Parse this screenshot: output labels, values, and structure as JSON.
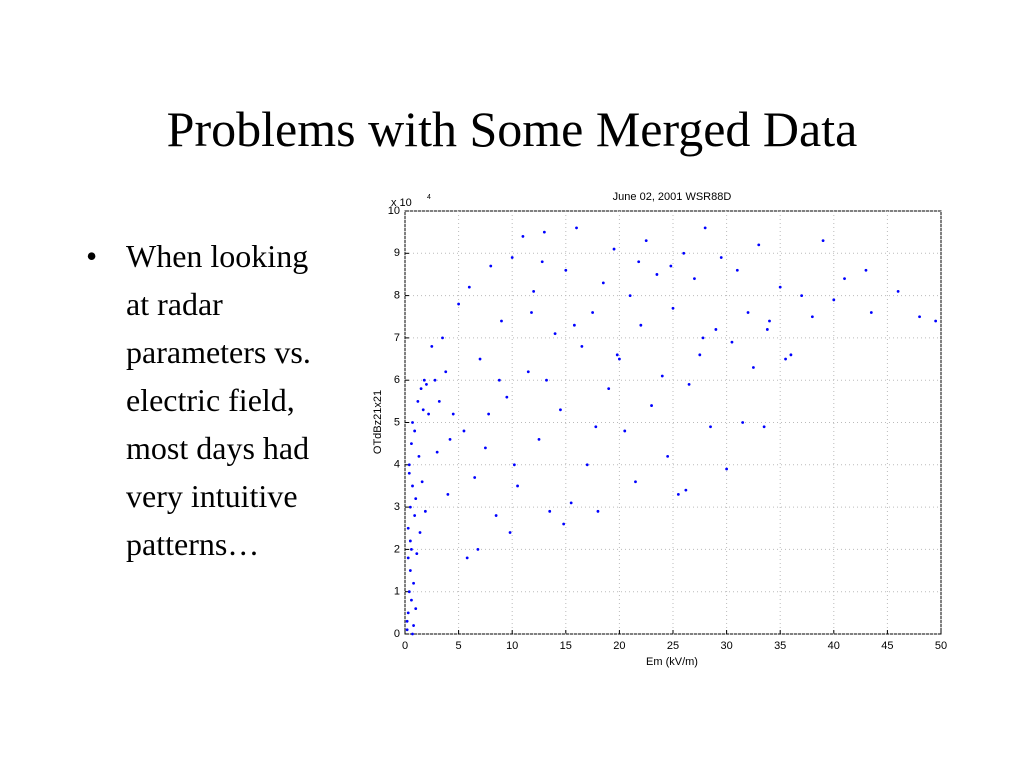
{
  "slide": {
    "title": "Problems with Some Merged Data",
    "bullet_lines": [
      "When looking",
      "at radar",
      "parameters vs.",
      "electric field,",
      "most days had",
      "very intuitive",
      "patterns…"
    ]
  },
  "chart_data": {
    "type": "scatter",
    "title": "June 02, 2001 WSR88D",
    "x_label": "Em (kV/m)",
    "y_label": "OTdBz21x21",
    "y_multiplier": {
      "base": "x 10",
      "exponent": "4"
    },
    "color": "#0000ff",
    "grid": true,
    "xlim": [
      0,
      50
    ],
    "xticks": [
      0,
      5,
      10,
      15,
      20,
      25,
      30,
      35,
      40,
      45,
      50
    ],
    "ylim": [
      0,
      10
    ],
    "yticks": [
      0,
      1,
      2,
      3,
      4,
      5,
      6,
      7,
      8,
      9,
      10
    ],
    "x": [
      0.2,
      0.3,
      0.4,
      0.5,
      0.6,
      0.3,
      0.5,
      0.7,
      0.4,
      0.2,
      0.6,
      0.8,
      0.3,
      0.5,
      0.9,
      1.0,
      0.4,
      0.6,
      0.7,
      1.2,
      1.5,
      1.8,
      2.0,
      2.2,
      1.3,
      1.6,
      0.8,
      1.1,
      1.4,
      1.9,
      2.5,
      3.0,
      3.5,
      4.0,
      4.5,
      5.0,
      5.5,
      6.0,
      6.5,
      7.0,
      7.5,
      8.0,
      8.5,
      9.0,
      9.5,
      10.0,
      10.5,
      11.0,
      11.5,
      12.0,
      12.5,
      13.0,
      13.5,
      14.0,
      14.5,
      15.0,
      15.5,
      16.0,
      16.5,
      17.0,
      17.5,
      18.0,
      18.5,
      19.0,
      19.5,
      20.0,
      20.5,
      21.0,
      21.5,
      22.0,
      22.5,
      23.0,
      23.5,
      24.0,
      24.5,
      25.0,
      25.5,
      26.0,
      26.5,
      27.0,
      27.5,
      28.0,
      28.5,
      29.0,
      29.5,
      30.0,
      30.5,
      31.0,
      31.5,
      32.0,
      32.5,
      33.0,
      33.5,
      34.0,
      35.0,
      36.0,
      37.0,
      38.0,
      39.0,
      40.0,
      41.0,
      43.0,
      43.5,
      46.0,
      48.0,
      49.5,
      2.8,
      3.2,
      3.8,
      4.2,
      7.8,
      8.8,
      11.8,
      12.8,
      15.8,
      19.8,
      24.8,
      27.8,
      33.8,
      35.5,
      10.2,
      13.2,
      17.8,
      21.8,
      26.2,
      6.8,
      9.8,
      14.8,
      5.8,
      1.0,
      0.7,
      0.9,
      1.7
    ],
    "values": [
      0.1,
      0.5,
      1.0,
      1.5,
      2.0,
      2.5,
      3.0,
      3.5,
      4.0,
      0.3,
      0.8,
      1.2,
      1.8,
      2.2,
      2.8,
      3.2,
      3.8,
      4.5,
      5.0,
      5.5,
      5.8,
      6.0,
      5.9,
      5.2,
      4.2,
      3.6,
      0.2,
      1.9,
      2.4,
      2.9,
      6.8,
      4.3,
      7.0,
      3.3,
      5.2,
      7.8,
      4.8,
      8.2,
      3.7,
      6.5,
      4.4,
      8.7,
      2.8,
      7.4,
      5.6,
      8.9,
      3.5,
      9.4,
      6.2,
      8.1,
      4.6,
      9.5,
      2.9,
      7.1,
      5.3,
      8.6,
      3.1,
      9.6,
      6.8,
      4.0,
      7.6,
      2.9,
      8.3,
      5.8,
      9.1,
      6.5,
      4.8,
      8.0,
      3.6,
      7.3,
      9.3,
      5.4,
      8.5,
      6.1,
      4.2,
      7.7,
      3.3,
      9.0,
      5.9,
      8.4,
      6.6,
      9.6,
      4.9,
      7.2,
      8.9,
      3.9,
      6.9,
      8.6,
      5.0,
      7.6,
      6.3,
      9.2,
      4.9,
      7.4,
      8.2,
      6.6,
      8.0,
      7.5,
      9.3,
      7.9,
      8.4,
      8.6,
      7.6,
      8.1,
      7.5,
      7.4,
      6.0,
      5.5,
      6.2,
      4.6,
      5.2,
      6.0,
      7.6,
      8.8,
      7.3,
      6.6,
      8.7,
      7.0,
      7.2,
      6.5,
      4.0,
      6.0,
      4.9,
      8.8,
      3.4,
      2.0,
      2.4,
      2.6,
      1.8,
      0.6,
      0.0,
      4.8,
      5.3
    ]
  }
}
